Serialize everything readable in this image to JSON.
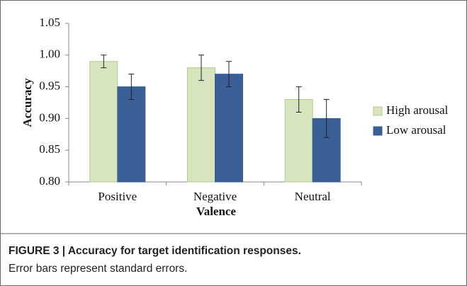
{
  "chart_data": {
    "type": "bar",
    "categories": [
      "Positive",
      "Negative",
      "Neutral"
    ],
    "series": [
      {
        "name": "High arousal",
        "color": "#d7e4bd",
        "values": [
          0.99,
          0.98,
          0.93
        ],
        "errors": [
          0.01,
          0.02,
          0.02
        ]
      },
      {
        "name": "Low arousal",
        "color": "#3a5f97",
        "values": [
          0.95,
          0.97,
          0.9
        ],
        "errors": [
          0.02,
          0.02,
          0.03
        ]
      }
    ],
    "xlabel": "Valence",
    "ylabel": "Accuracy",
    "ylim": [
      0.8,
      1.05
    ],
    "yticks": [
      {
        "value": 0.8,
        "label": "0.80"
      },
      0.85,
      {
        "value": 0.9,
        "label": "0.90"
      },
      0.95,
      {
        "value": 1,
        "label": "1.00"
      },
      1.05
    ],
    "grid": false,
    "legend": "right"
  },
  "caption": {
    "title": "FIGURE 3 | Accuracy for target identification responses.",
    "text": "Error bars represent standard errors."
  }
}
